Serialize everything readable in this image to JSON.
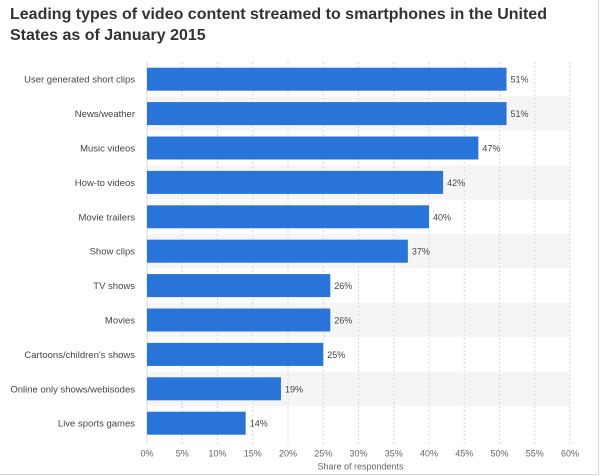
{
  "chart_data": {
    "type": "bar",
    "orientation": "horizontal",
    "title": "Leading types of video content streamed to smartphones in the United States as of January 2015",
    "xlabel": "Share of respondents",
    "ylabel": "",
    "categories": [
      "User generated short clips",
      "News/weather",
      "Music videos",
      "How-to videos",
      "Movie trailers",
      "Show clips",
      "TV shows",
      "Movies",
      "Cartoons/children's shows",
      "Online only shows/webisodes",
      "Live sports games"
    ],
    "values": [
      51,
      51,
      47,
      42,
      40,
      37,
      26,
      26,
      25,
      19,
      14
    ],
    "value_labels": [
      "51%",
      "51%",
      "47%",
      "42%",
      "40%",
      "37%",
      "26%",
      "26%",
      "25%",
      "19%",
      "14%"
    ],
    "xlim": [
      0,
      60
    ],
    "ticks": [
      0,
      5,
      10,
      15,
      20,
      25,
      30,
      35,
      40,
      45,
      50,
      55,
      60
    ],
    "tick_labels": [
      "0%",
      "5%",
      "10%",
      "15%",
      "20%",
      "25%",
      "30%",
      "35%",
      "40%",
      "45%",
      "50%",
      "55%",
      "60%"
    ],
    "grid": true,
    "bar_color": "#2874d8",
    "band_color": "#f5f5f5"
  }
}
